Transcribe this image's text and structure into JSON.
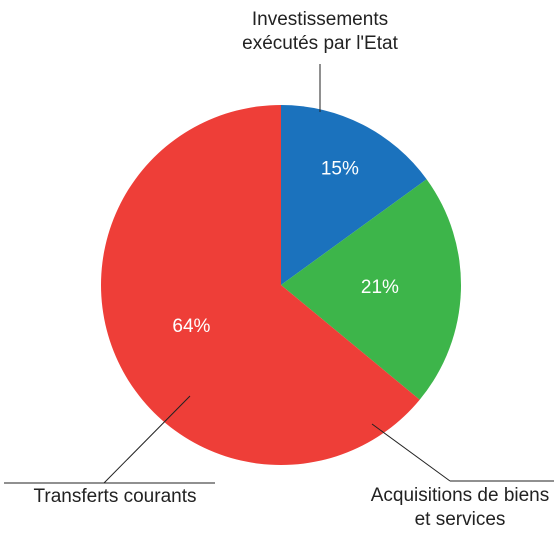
{
  "chart_data": {
    "type": "pie",
    "categories": [
      "Investissements exécutés par l'Etat",
      "Acquisitions de biens et services",
      "Transferts courants"
    ],
    "values": [
      15,
      21,
      64
    ],
    "value_labels": [
      "15%",
      "21%",
      "64%"
    ],
    "colors": [
      "#1b72bd",
      "#3db54a",
      "#ee3e38"
    ]
  }
}
